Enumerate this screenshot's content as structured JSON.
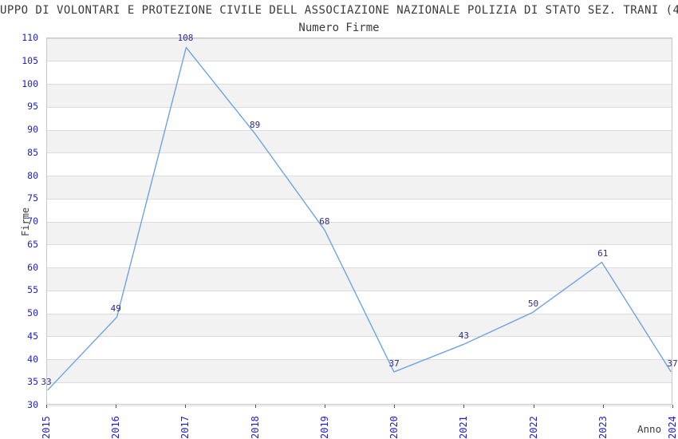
{
  "chart_data": {
    "type": "line",
    "title": "UPPO DI VOLONTARI E PROTEZIONE CIVILE DELL ASSOCIAZIONE NAZIONALE POLIZIA DI STATO SEZ. TRANI (4",
    "subtitle": "Numero Firme",
    "xlabel": "Anno",
    "ylabel": "Firme",
    "categories": [
      "2015",
      "2016",
      "2017",
      "2018",
      "2019",
      "2020",
      "2021",
      "2022",
      "2023",
      "2024"
    ],
    "series": [
      {
        "name": "Numero Firme",
        "values": [
          33,
          49,
          108,
          89,
          68,
          37,
          43,
          50,
          61,
          37
        ]
      }
    ],
    "data_labels": [
      33,
      49,
      108,
      89,
      68,
      37,
      43,
      50,
      61,
      37
    ],
    "ylim": [
      30,
      110
    ],
    "ytick_step": 5,
    "grid": "horizontal-bands",
    "legend": "none",
    "colors": {
      "line": "#6ea3e4",
      "tick_label": "#2020cc",
      "point_label": "#2e2e85",
      "band": "#f2f2f2",
      "gridline": "#dcdcdc",
      "spine": "#c8c8c8",
      "title": "#3a3a3a",
      "tick_mark": "#555555"
    }
  }
}
